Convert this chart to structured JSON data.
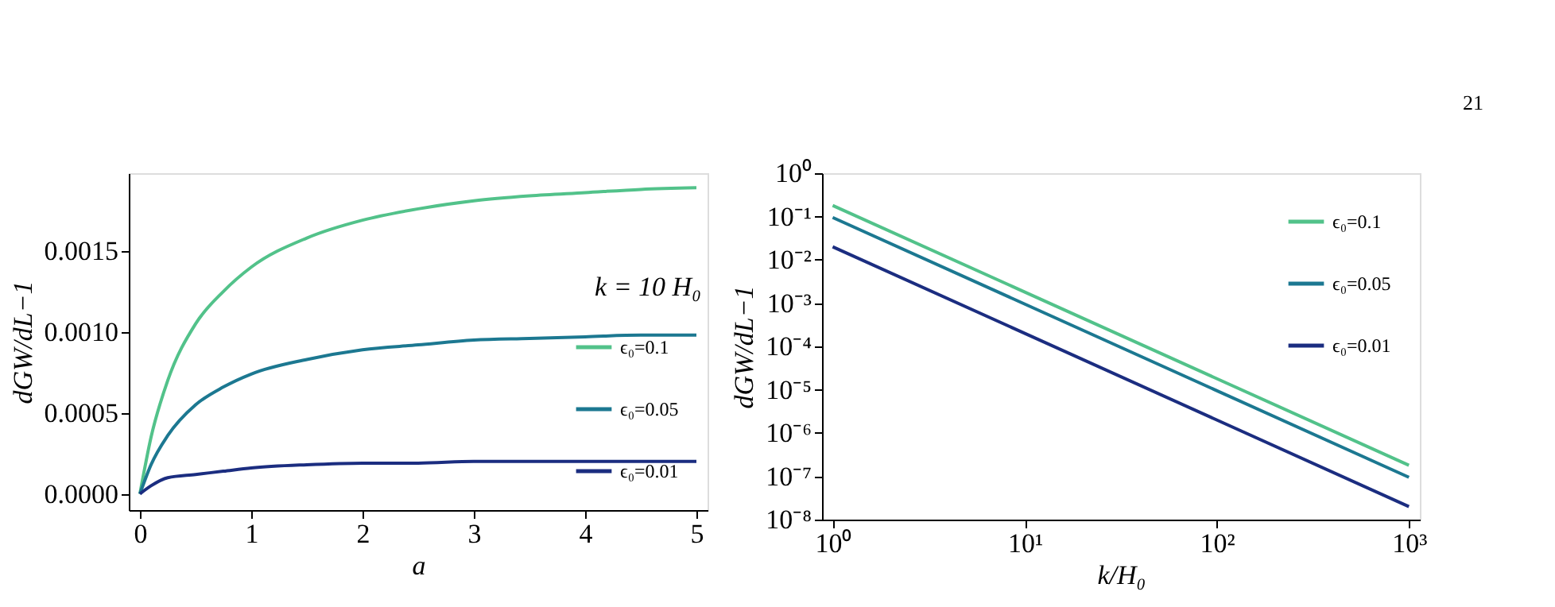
{
  "chart_data": [
    {
      "type": "line",
      "xlabel": "a",
      "ylabel": "dGW/dL−1",
      "annotations": [
        "k = 10 H₀"
      ],
      "xlim": [
        -0.1,
        5.1
      ],
      "xticks": [
        0,
        1,
        2,
        3,
        4,
        5
      ],
      "ylim": [
        -0.0001,
        0.00198
      ],
      "yticks": [
        {
          "value": 0,
          "label": "0.0000"
        },
        {
          "value": 0.0005,
          "label": "0.0005"
        },
        {
          "value": 0.001,
          "label": "0.0010"
        },
        {
          "value": 0.0015,
          "label": "0.0015"
        }
      ],
      "grid": false,
      "legend": "bottom right",
      "line_style": "solid",
      "marker": "none",
      "x": [
        0,
        0.1,
        0.25,
        0.5,
        0.75,
        1,
        1.5,
        2,
        2.5,
        3,
        3.5,
        4,
        4.5,
        5
      ],
      "series": [
        {
          "name": "ϵ₀=0.1",
          "color": "#52c28a",
          "values": [
            0,
            0.00035,
            0.0007,
            0.00105,
            0.00125,
            0.0014,
            0.00158,
            0.00169,
            0.00176,
            0.00181,
            0.00184,
            0.00186,
            0.00188,
            0.00189
          ]
        },
        {
          "name": "ϵ₀=0.05",
          "color": "#1c7891",
          "values": [
            0,
            0.00018,
            0.00036,
            0.00055,
            0.00066,
            0.00074,
            0.00083,
            0.00089,
            0.00092,
            0.00095,
            0.00096,
            0.00097,
            0.00098,
            0.00098
          ]
        },
        {
          "name": "ϵ₀=0.01",
          "color": "#1b2d80",
          "values": [
            0,
            5e-05,
            0.0001,
            0.00012,
            0.00014,
            0.00016,
            0.00018,
            0.00019,
            0.00019,
            0.0002,
            0.0002,
            0.0002,
            0.0002,
            0.0002
          ]
        }
      ]
    },
    {
      "type": "line",
      "xlabel": "k/H₀",
      "ylabel": "dGW/dL−1",
      "annotations": [
        "21"
      ],
      "log": "xy",
      "xlim": [
        0.88,
        1140
      ],
      "xticks": [
        {
          "value": 1,
          "label": "10⁰"
        },
        {
          "value": 10,
          "label": "10¹"
        },
        {
          "value": 100,
          "label": "10²"
        },
        {
          "value": 1000,
          "label": "10³"
        }
      ],
      "ylim": [
        1e-08,
        1
      ],
      "yticks": [
        {
          "value": 1e-08,
          "label": "10⁻⁸"
        },
        {
          "value": 1e-07,
          "label": "10⁻⁷"
        },
        {
          "value": 1e-06,
          "label": "10⁻⁶"
        },
        {
          "value": 1e-05,
          "label": "10⁻⁵"
        },
        {
          "value": 0.0001,
          "label": "10⁻⁴"
        },
        {
          "value": 0.001,
          "label": "10⁻³"
        },
        {
          "value": 0.01,
          "label": "10⁻²"
        },
        {
          "value": 0.1,
          "label": "10⁻¹"
        },
        {
          "value": 1,
          "label": "10⁰"
        }
      ],
      "grid": false,
      "legend": "top right",
      "line_style": "solid",
      "marker": "none",
      "x": [
        1,
        1000
      ],
      "series": [
        {
          "name": "ϵ₀=0.1",
          "color": "#52c28a",
          "values": [
            0.18,
            1.8e-07
          ]
        },
        {
          "name": "ϵ₀=0.05",
          "color": "#1c7891",
          "values": [
            0.095,
            9.5e-08
          ]
        },
        {
          "name": "ϵ₀=0.01",
          "color": "#1b2d80",
          "values": [
            0.02,
            2e-08
          ]
        }
      ]
    }
  ]
}
